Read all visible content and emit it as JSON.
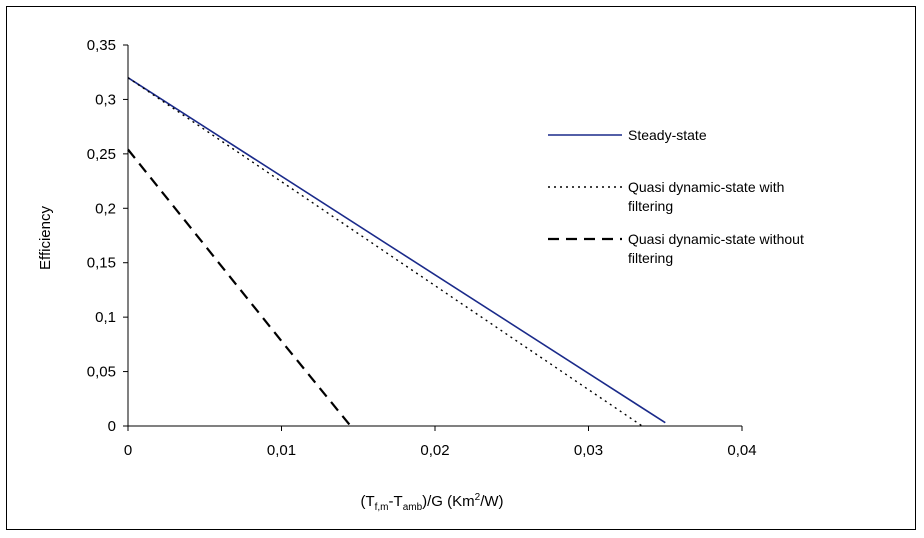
{
  "chart_data": {
    "type": "line",
    "xlabel_parts": {
      "main1": "(T",
      "sub1": "f,m",
      "dash": "-T",
      "sub2": "amb",
      "main2": ")/G (Km",
      "sup": "2",
      "main3": "/W)"
    },
    "ylabel": "Efficiency",
    "xlim": [
      0,
      0.04
    ],
    "ylim": [
      0,
      0.35
    ],
    "x_ticks": [
      0,
      0.01,
      0.02,
      0.03,
      0.04
    ],
    "x_tick_labels": [
      "0",
      "0,01",
      "0,02",
      "0,03",
      "0,04"
    ],
    "y_ticks": [
      0,
      0.05,
      0.1,
      0.15,
      0.2,
      0.25,
      0.3,
      0.35
    ],
    "y_tick_labels": [
      "0",
      "0,05",
      "0,1",
      "0,15",
      "0,2",
      "0,25",
      "0,3",
      "0,35"
    ],
    "grid": false,
    "legend_position": "right",
    "series": [
      {
        "name": "Steady-state",
        "legend_lines": [
          "Steady-state"
        ],
        "color": "#1a2a8a",
        "style": "solid",
        "points": [
          [
            0,
            0.32
          ],
          [
            0.035,
            0.003
          ]
        ]
      },
      {
        "name": "Quasi dynamic-state with filtering",
        "legend_lines": [
          "Quasi dynamic-state with",
          "filtering"
        ],
        "color": "#000000",
        "style": "dotted",
        "points": [
          [
            0,
            0.32
          ],
          [
            0.0335,
            0
          ]
        ]
      },
      {
        "name": "Quasi dynamic-state without filtering",
        "legend_lines": [
          "Quasi dynamic-state without",
          "filtering"
        ],
        "color": "#000000",
        "style": "dashed",
        "points": [
          [
            0,
            0.254
          ],
          [
            0.01,
            0.078
          ],
          [
            0.0145,
            0
          ]
        ]
      }
    ]
  }
}
